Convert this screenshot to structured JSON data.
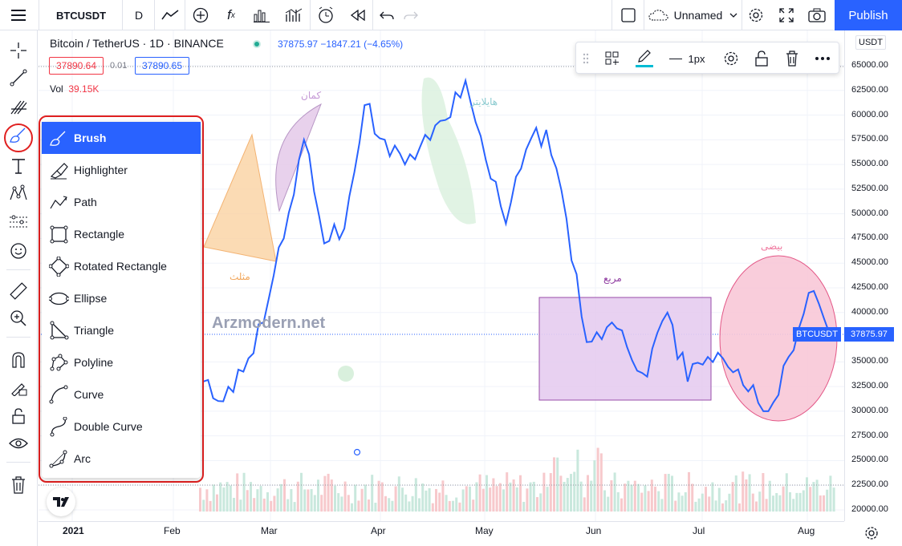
{
  "topbar": {
    "symbol": "BTCUSDT",
    "interval": "D",
    "layout_name": "Unnamed",
    "publish_label": "Publish"
  },
  "legend": {
    "title": "Bitcoin / TetherUS · 1D · BINANCE",
    "last": "37875.97",
    "change": "−1847.21 (−4.65%)",
    "bid": "37890.64",
    "spread": "0.01",
    "ask": "37890.65",
    "vol_label": "Vol",
    "vol_value": "39.15K"
  },
  "float_toolbar": {
    "width_label": "1px"
  },
  "drawing_menu": {
    "items": [
      {
        "label": "Brush",
        "icon": "brush-icon",
        "active": true
      },
      {
        "label": "Highlighter",
        "icon": "highlighter-icon",
        "active": false
      },
      {
        "label": "Path",
        "icon": "path-icon",
        "active": false
      },
      {
        "label": "Rectangle",
        "icon": "rectangle-icon",
        "active": false
      },
      {
        "label": "Rotated Rectangle",
        "icon": "rotated-rectangle-icon",
        "active": false
      },
      {
        "label": "Ellipse",
        "icon": "ellipse-icon",
        "active": false
      },
      {
        "label": "Triangle",
        "icon": "triangle-icon",
        "active": false
      },
      {
        "label": "Polyline",
        "icon": "polyline-icon",
        "active": false
      },
      {
        "label": "Curve",
        "icon": "curve-icon",
        "active": false
      },
      {
        "label": "Double Curve",
        "icon": "double-curve-icon",
        "active": false
      },
      {
        "label": "Arc",
        "icon": "arc-icon",
        "active": false
      }
    ]
  },
  "annotations": {
    "watermark": "Arzmodern.net",
    "triangle_label": "مثلث",
    "arc_label": "کمان",
    "highlighter_label": "هایلایتر",
    "rectangle_label": "مربع",
    "ellipse_label": "بیضی"
  },
  "price_axis": {
    "currency": "USDT",
    "ticks": [
      "65000.00",
      "62500.00",
      "60000.00",
      "57500.00",
      "55000.00",
      "52500.00",
      "50000.00",
      "47500.00",
      "45000.00",
      "42500.00",
      "40000.00",
      "35000.00",
      "32500.00",
      "30000.00",
      "27500.00",
      "25000.00",
      "22500.00",
      "20000.00"
    ],
    "current_symbol": "BTCUSDT",
    "current_price": "37875.97"
  },
  "time_axis": {
    "ticks": [
      "2021",
      "Feb",
      "Mar",
      "Apr",
      "May",
      "Jun",
      "Jul",
      "Aug"
    ]
  },
  "colors": {
    "accent": "#2962ff",
    "line": "#2962ff",
    "triangle_fill": "#fbd5a8",
    "arc_fill": "#e6cdea",
    "rect_fill": "#e6cdf0",
    "ellipse_fill": "#f9c8d8",
    "highlighter": "#d9f0dd"
  },
  "chart_data": {
    "type": "line",
    "title": "",
    "xlabel": "",
    "ylabel": "",
    "ylim": [
      18000,
      67000
    ],
    "x": [
      "Jan 20",
      "Jan 25",
      "Feb 1",
      "Feb 8",
      "Feb 15",
      "Feb 21",
      "Feb 26",
      "Mar 5",
      "Mar 13",
      "Mar 20",
      "Mar 27",
      "Apr 3",
      "Apr 10",
      "Apr 14",
      "Apr 20",
      "Apr 25",
      "May 1",
      "May 8",
      "May 12",
      "May 19",
      "May 25",
      "Jun 1",
      "Jun 8",
      "Jun 15",
      "Jun 22",
      "Jun 29",
      "Jul 6",
      "Jul 13",
      "Jul 20",
      "Jul 26",
      "Aug 1",
      "Aug 4"
    ],
    "values": [
      33000,
      31000,
      34000,
      39000,
      47500,
      57500,
      47000,
      48500,
      61000,
      57500,
      55000,
      58000,
      59500,
      63500,
      55500,
      49000,
      56500,
      58500,
      49500,
      37000,
      38500,
      36500,
      33500,
      40000,
      33000,
      35500,
      34500,
      32000,
      30000,
      35500,
      42000,
      38000
    ]
  }
}
